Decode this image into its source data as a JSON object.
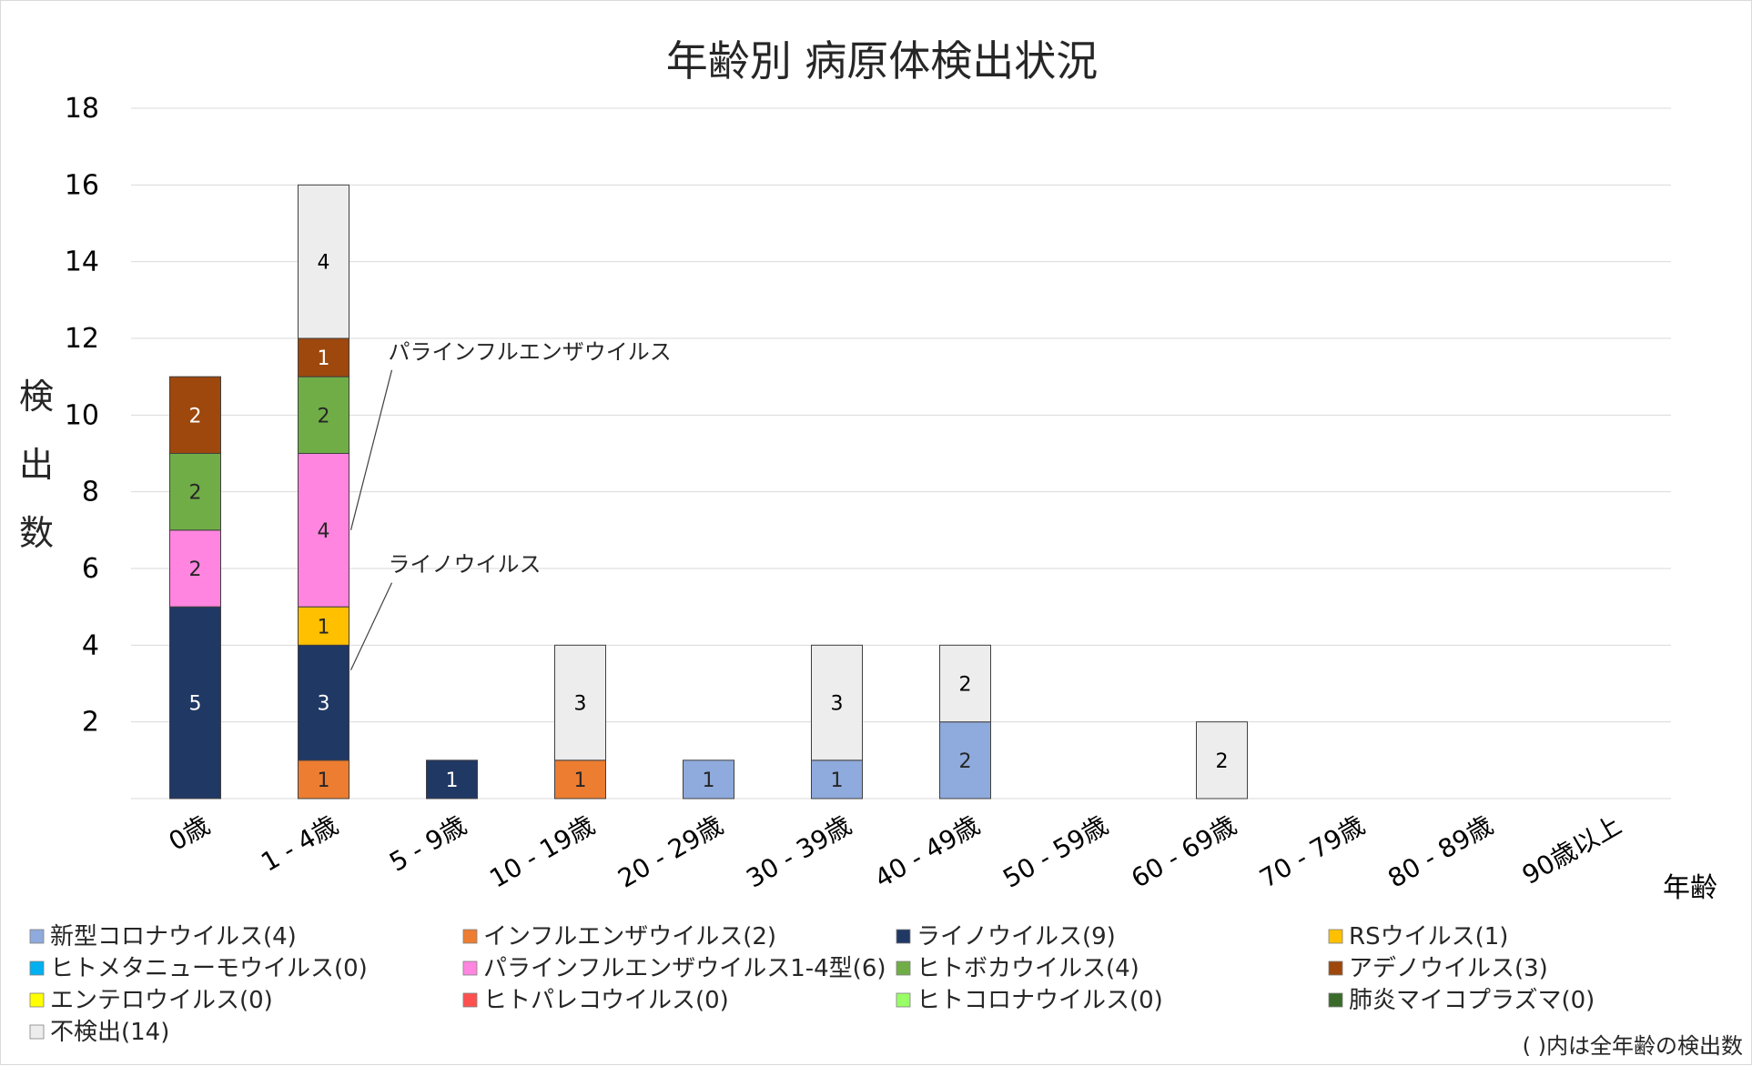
{
  "chart_data": {
    "type": "bar",
    "stacked": true,
    "title": "年齢別 病原体検出状況",
    "ylabel": "検出数",
    "xlabel": "年齢",
    "ylim": [
      0,
      18
    ],
    "yticks": [
      2,
      4,
      6,
      8,
      10,
      12,
      14,
      16,
      18
    ],
    "grid": true,
    "legend_position": "bottom",
    "categories": [
      "0歳",
      "1 - 4歳",
      "5 - 9歳",
      "10 - 19歳",
      "20 - 29歳",
      "30 - 39歳",
      "40 - 49歳",
      "50 - 59歳",
      "60 - 69歳",
      "70 - 79歳",
      "80 - 89歳",
      "90歳以上"
    ],
    "series": [
      {
        "name": "新型コロナウイルス(4)",
        "color": "#8faadc",
        "label_color": "#262626",
        "values": [
          0,
          0,
          0,
          0,
          1,
          1,
          2,
          0,
          0,
          0,
          0,
          0
        ]
      },
      {
        "name": "インフルエンザウイルス(2)",
        "color": "#ed7d31",
        "label_color": "#262626",
        "values": [
          0,
          1,
          0,
          1,
          0,
          0,
          0,
          0,
          0,
          0,
          0,
          0
        ]
      },
      {
        "name": "ライノウイルス(9)",
        "color": "#203864",
        "label_color": "#ffffff",
        "values": [
          5,
          3,
          1,
          0,
          0,
          0,
          0,
          0,
          0,
          0,
          0,
          0
        ]
      },
      {
        "name": "RSウイルス(1)",
        "color": "#ffc000",
        "label_color": "#262626",
        "values": [
          0,
          1,
          0,
          0,
          0,
          0,
          0,
          0,
          0,
          0,
          0,
          0
        ]
      },
      {
        "name": "ヒトメタニューモウイルス(0)",
        "color": "#00b0f0",
        "label_color": "#262626",
        "values": [
          0,
          0,
          0,
          0,
          0,
          0,
          0,
          0,
          0,
          0,
          0,
          0
        ]
      },
      {
        "name": "パラインフルエンザウイルス1-4型(6)",
        "color": "#ff85e0",
        "label_color": "#262626",
        "values": [
          2,
          4,
          0,
          0,
          0,
          0,
          0,
          0,
          0,
          0,
          0,
          0
        ]
      },
      {
        "name": "ヒトボカウイルス(4)",
        "color": "#70ad47",
        "label_color": "#262626",
        "values": [
          2,
          2,
          0,
          0,
          0,
          0,
          0,
          0,
          0,
          0,
          0,
          0
        ]
      },
      {
        "name": "アデノウイルス(3)",
        "color": "#9e480e",
        "label_color": "#ffffff",
        "values": [
          2,
          1,
          0,
          0,
          0,
          0,
          0,
          0,
          0,
          0,
          0,
          0
        ]
      },
      {
        "name": "エンテロウイルス(0)",
        "color": "#ffff00",
        "label_color": "#262626",
        "values": [
          0,
          0,
          0,
          0,
          0,
          0,
          0,
          0,
          0,
          0,
          0,
          0
        ]
      },
      {
        "name": "ヒトパレコウイルス(0)",
        "color": "#ff5050",
        "label_color": "#262626",
        "values": [
          0,
          0,
          0,
          0,
          0,
          0,
          0,
          0,
          0,
          0,
          0,
          0
        ]
      },
      {
        "name": "ヒトコロナウイルス(0)",
        "color": "#99ff66",
        "label_color": "#262626",
        "values": [
          0,
          0,
          0,
          0,
          0,
          0,
          0,
          0,
          0,
          0,
          0,
          0
        ]
      },
      {
        "name": "肺炎マイコプラズマ(0)",
        "color": "#3a6b2a",
        "label_color": "#ffffff",
        "values": [
          0,
          0,
          0,
          0,
          0,
          0,
          0,
          0,
          0,
          0,
          0,
          0
        ]
      },
      {
        "name": "不検出(14)",
        "color": "#ededed",
        "label_color": "#000000",
        "values": [
          0,
          4,
          0,
          3,
          0,
          3,
          2,
          0,
          2,
          0,
          0,
          0
        ]
      }
    ],
    "annotations": [
      {
        "text": "パラインフルエンザウイルス",
        "category": "1 - 4歳",
        "series": "パラインフルエンザウイルス1-4型(6)"
      },
      {
        "text": "ライノウイルス",
        "category": "1 - 4歳",
        "series": "ライノウイルス(9)"
      }
    ],
    "note": "( )内は全年齢の検出数"
  }
}
